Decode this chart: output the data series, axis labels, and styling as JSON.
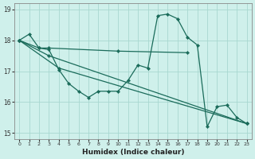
{
  "xlabel": "Humidex (Indice chaleur)",
  "bg_color": "#cff0eb",
  "grid_color": "#a8d8d0",
  "line_color": "#1a6b5a",
  "ylim": [
    14.8,
    19.2
  ],
  "xlim": [
    -0.5,
    23.5
  ],
  "yticks": [
    15,
    16,
    17,
    18,
    19
  ],
  "xticks": [
    0,
    1,
    2,
    3,
    4,
    5,
    6,
    7,
    8,
    9,
    10,
    11,
    12,
    13,
    14,
    15,
    16,
    17,
    18,
    19,
    20,
    21,
    22,
    23
  ],
  "series": [
    {
      "x": [
        0,
        2,
        3,
        10,
        17
      ],
      "y": [
        18.0,
        17.75,
        17.75,
        17.65,
        17.6
      ]
    },
    {
      "x": [
        0,
        1,
        2,
        3,
        4,
        5,
        6,
        7,
        8,
        9,
        10,
        11,
        12,
        13,
        14,
        15,
        16,
        17,
        18,
        19,
        20,
        21,
        22,
        23
      ],
      "y": [
        18.0,
        18.2,
        17.75,
        17.7,
        17.05,
        16.6,
        16.35,
        16.15,
        16.35,
        16.35,
        16.35,
        16.7,
        17.2,
        17.1,
        18.8,
        18.85,
        18.7,
        18.1,
        17.85,
        15.2,
        15.85,
        15.9,
        15.5,
        15.3
      ]
    },
    {
      "x": [
        0,
        3,
        23
      ],
      "y": [
        18.0,
        17.5,
        15.3
      ]
    },
    {
      "x": [
        0,
        4,
        23
      ],
      "y": [
        18.0,
        17.1,
        15.3
      ]
    }
  ]
}
